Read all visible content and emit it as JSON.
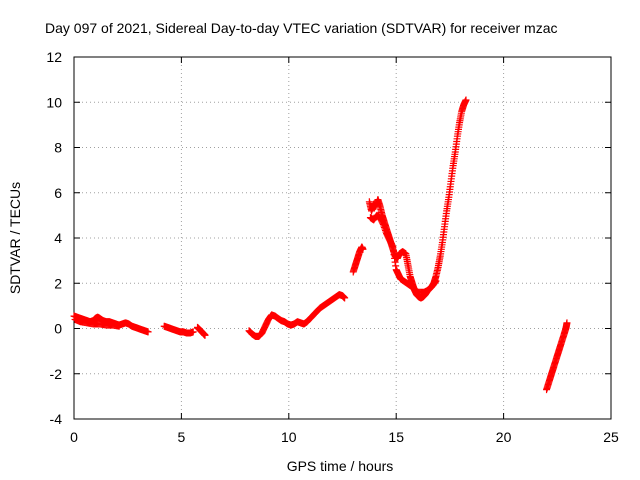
{
  "chart_data": {
    "type": "scatter",
    "title": "Day 097 of 2021, Sidereal Day-to-day VTEC variation (SDTVAR) for receiver mzac",
    "xlabel": "GPS time / hours",
    "ylabel": "SDTVAR / TECUs",
    "xlim": [
      0,
      25
    ],
    "ylim": [
      -4,
      12
    ],
    "xticks": [
      0,
      5,
      10,
      15,
      20,
      25
    ],
    "yticks": [
      -4,
      -2,
      0,
      2,
      4,
      6,
      8,
      10,
      12
    ],
    "xtick_labels": [
      "0",
      "5",
      "10",
      "15",
      "20",
      "25"
    ],
    "ytick_labels": [
      "-4",
      "-2",
      "0",
      "2",
      "4",
      "6",
      "8",
      "10",
      "12"
    ],
    "grid": true,
    "marker": "plus",
    "series_color": "#ff0000",
    "series": [
      {
        "name": "SDTVAR",
        "segments": [
          [
            [
              0.0,
              0.55
            ],
            [
              0.15,
              0.5
            ],
            [
              0.3,
              0.45
            ],
            [
              0.45,
              0.4
            ],
            [
              0.6,
              0.35
            ],
            [
              0.75,
              0.3
            ],
            [
              0.9,
              0.35
            ],
            [
              1.0,
              0.45
            ],
            [
              1.1,
              0.5
            ],
            [
              1.2,
              0.45
            ],
            [
              1.35,
              0.35
            ],
            [
              1.5,
              0.3
            ],
            [
              1.65,
              0.3
            ],
            [
              1.8,
              0.25
            ],
            [
              1.95,
              0.2
            ],
            [
              2.1,
              0.15
            ],
            [
              2.25,
              0.2
            ],
            [
              2.4,
              0.25
            ],
            [
              2.55,
              0.2
            ],
            [
              2.7,
              0.1
            ],
            [
              2.85,
              0.05
            ],
            [
              3.0,
              0.0
            ],
            [
              3.15,
              -0.05
            ],
            [
              3.3,
              -0.1
            ],
            [
              3.45,
              -0.15
            ]
          ],
          [
            [
              0.05,
              0.4
            ],
            [
              0.3,
              0.3
            ],
            [
              0.6,
              0.25
            ],
            [
              0.9,
              0.2
            ],
            [
              1.2,
              0.2
            ],
            [
              1.5,
              0.15
            ],
            [
              1.8,
              0.15
            ],
            [
              2.1,
              0.1
            ]
          ],
          [
            [
              4.2,
              0.1
            ],
            [
              4.35,
              0.05
            ],
            [
              4.5,
              0.0
            ],
            [
              4.65,
              -0.05
            ],
            [
              4.8,
              -0.1
            ],
            [
              4.95,
              -0.15
            ],
            [
              5.1,
              -0.15
            ],
            [
              5.25,
              -0.2
            ],
            [
              5.4,
              -0.2
            ],
            [
              5.55,
              -0.15
            ]
          ],
          [
            [
              5.75,
              0.05
            ],
            [
              5.85,
              -0.05
            ],
            [
              5.95,
              -0.15
            ],
            [
              6.05,
              -0.25
            ],
            [
              6.1,
              -0.3
            ]
          ],
          [
            [
              8.15,
              -0.1
            ],
            [
              8.3,
              -0.25
            ],
            [
              8.45,
              -0.35
            ],
            [
              8.6,
              -0.35
            ],
            [
              8.75,
              -0.2
            ],
            [
              8.9,
              0.1
            ],
            [
              9.05,
              0.4
            ],
            [
              9.2,
              0.6
            ],
            [
              9.35,
              0.55
            ],
            [
              9.5,
              0.45
            ],
            [
              9.65,
              0.35
            ],
            [
              9.8,
              0.3
            ],
            [
              9.95,
              0.2
            ],
            [
              10.1,
              0.15
            ],
            [
              10.25,
              0.2
            ],
            [
              10.4,
              0.3
            ],
            [
              10.55,
              0.25
            ],
            [
              10.7,
              0.2
            ],
            [
              10.85,
              0.3
            ],
            [
              11.0,
              0.45
            ],
            [
              11.15,
              0.6
            ],
            [
              11.3,
              0.75
            ],
            [
              11.45,
              0.9
            ],
            [
              11.6,
              1.0
            ],
            [
              11.75,
              1.1
            ],
            [
              11.9,
              1.2
            ],
            [
              12.05,
              1.3
            ],
            [
              12.2,
              1.4
            ],
            [
              12.35,
              1.5
            ],
            [
              12.5,
              1.45
            ],
            [
              12.6,
              1.35
            ]
          ],
          [
            [
              13.0,
              2.5
            ],
            [
              13.1,
              2.8
            ],
            [
              13.2,
              3.1
            ],
            [
              13.3,
              3.4
            ],
            [
              13.4,
              3.6
            ],
            [
              13.45,
              3.5
            ]
          ],
          [
            [
              13.75,
              5.6
            ],
            [
              13.85,
              5.2
            ],
            [
              13.95,
              5.5
            ],
            [
              14.05,
              5.4
            ],
            [
              14.15,
              5.7
            ],
            [
              14.25,
              5.4
            ],
            [
              14.35,
              5.0
            ],
            [
              14.45,
              4.7
            ],
            [
              14.55,
              4.4
            ],
            [
              14.65,
              4.1
            ],
            [
              14.75,
              3.8
            ],
            [
              14.85,
              3.5
            ],
            [
              14.95,
              3.2
            ],
            [
              15.05,
              3.1
            ],
            [
              15.15,
              3.3
            ],
            [
              15.3,
              3.4
            ],
            [
              15.45,
              3.3
            ],
            [
              15.55,
              2.8
            ],
            [
              15.65,
              2.3
            ],
            [
              15.75,
              2.0
            ],
            [
              15.85,
              1.7
            ],
            [
              15.95,
              1.5
            ],
            [
              16.05,
              1.4
            ],
            [
              16.15,
              1.35
            ],
            [
              16.25,
              1.4
            ],
            [
              16.35,
              1.5
            ],
            [
              16.45,
              1.65
            ],
            [
              16.55,
              1.75
            ],
            [
              16.65,
              1.85
            ],
            [
              16.75,
              2.0
            ],
            [
              16.85,
              2.3
            ],
            [
              16.95,
              2.7
            ],
            [
              17.05,
              3.2
            ],
            [
              17.15,
              3.8
            ],
            [
              17.25,
              4.5
            ],
            [
              17.35,
              5.2
            ],
            [
              17.45,
              5.8
            ],
            [
              17.55,
              6.5
            ],
            [
              17.65,
              7.2
            ],
            [
              17.75,
              7.8
            ],
            [
              17.85,
              8.5
            ],
            [
              17.95,
              9.1
            ],
            [
              18.05,
              9.6
            ],
            [
              18.15,
              9.9
            ],
            [
              18.25,
              10.1
            ]
          ],
          [
            [
              13.8,
              4.9
            ],
            [
              13.95,
              4.8
            ],
            [
              14.1,
              5.0
            ],
            [
              14.25,
              4.9
            ],
            [
              14.4,
              4.6
            ],
            [
              14.55,
              4.2
            ],
            [
              14.7,
              3.9
            ],
            [
              14.85,
              3.6
            ],
            [
              15.0,
              2.6
            ],
            [
              15.1,
              2.4
            ],
            [
              15.2,
              2.2
            ],
            [
              15.35,
              2.1
            ],
            [
              15.5,
              2.0
            ],
            [
              15.65,
              1.9
            ],
            [
              15.8,
              1.8
            ],
            [
              16.0,
              1.6
            ],
            [
              16.3,
              1.6
            ],
            [
              16.5,
              1.7
            ],
            [
              16.7,
              1.9
            ],
            [
              16.85,
              2.1
            ]
          ],
          [
            [
              22.0,
              -2.7
            ],
            [
              22.1,
              -2.4
            ],
            [
              22.2,
              -2.1
            ],
            [
              22.3,
              -1.8
            ],
            [
              22.4,
              -1.5
            ],
            [
              22.5,
              -1.2
            ],
            [
              22.6,
              -0.9
            ],
            [
              22.7,
              -0.6
            ],
            [
              22.8,
              -0.3
            ],
            [
              22.9,
              0.0
            ],
            [
              22.95,
              0.25
            ]
          ]
        ]
      }
    ]
  }
}
